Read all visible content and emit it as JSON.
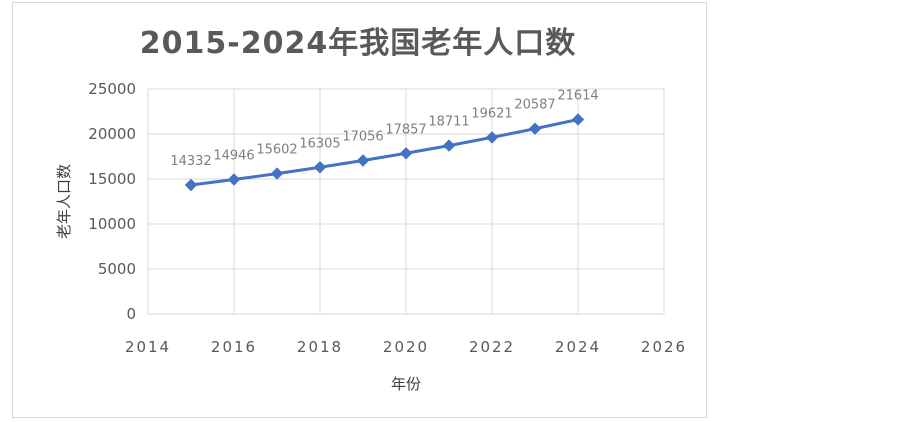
{
  "chart_data": {
    "type": "scatter",
    "title": "2015-2024年我国老年人口数",
    "xlabel": "年份",
    "ylabel": "老年人口数",
    "xlim": [
      2014,
      2026
    ],
    "ylim": [
      0,
      25000
    ],
    "x_ticks": [
      "2014",
      "2016",
      "2018",
      "2020",
      "2022",
      "2024",
      "2026"
    ],
    "y_ticks": [
      "0",
      "5000",
      "10000",
      "15000",
      "20000",
      "25000"
    ],
    "grid": true,
    "legend": "none",
    "series": [
      {
        "x": [
          2015,
          2016,
          2017,
          2018,
          2019,
          2020,
          2021,
          2022,
          2023,
          2024
        ],
        "y": [
          14332,
          14946,
          15602,
          16305,
          17056,
          17857,
          18711,
          19621,
          20587,
          21614
        ],
        "labels": [
          "14332",
          "14946",
          "15602",
          "16305",
          "17056",
          "17857",
          "18711",
          "19621",
          "20587",
          "21614"
        ],
        "color": "#4472c4",
        "marker": "diamond"
      }
    ]
  }
}
